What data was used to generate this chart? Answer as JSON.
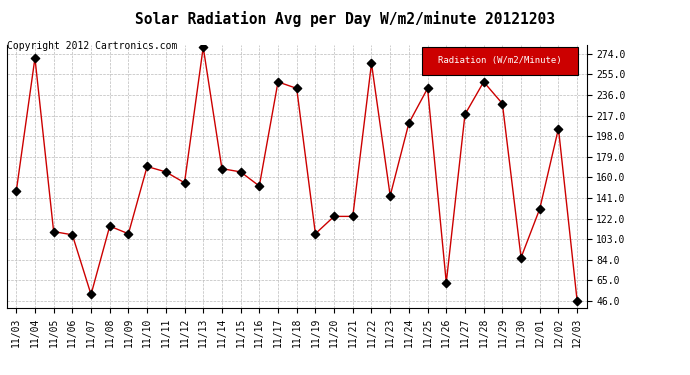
{
  "title": "Solar Radiation Avg per Day W/m2/minute 20121203",
  "copyright_text": "Copyright 2012 Cartronics.com",
  "legend_label": "Radiation (W/m2/Minute)",
  "x_labels": [
    "11/03",
    "11/04",
    "11/05",
    "11/06",
    "11/07",
    "11/08",
    "11/09",
    "11/10",
    "11/11",
    "11/12",
    "11/13",
    "11/14",
    "11/15",
    "11/16",
    "11/17",
    "11/18",
    "11/19",
    "11/20",
    "11/21",
    "11/22",
    "11/23",
    "11/24",
    "11/25",
    "11/26",
    "11/27",
    "11/28",
    "11/29",
    "11/30",
    "12/01",
    "12/02",
    "12/03"
  ],
  "y_values": [
    147,
    270,
    110,
    107,
    52,
    115,
    108,
    170,
    165,
    155,
    280,
    168,
    165,
    152,
    248,
    242,
    108,
    124,
    124,
    265,
    143,
    210,
    242,
    63,
    218,
    248,
    228,
    86,
    131,
    205,
    46
  ],
  "y_ticks": [
    46.0,
    65.0,
    84.0,
    103.0,
    122.0,
    141.0,
    160.0,
    179.0,
    198.0,
    217.0,
    236.0,
    255.0,
    274.0
  ],
  "ylim": [
    40,
    282
  ],
  "line_color": "#cc0000",
  "marker_color": "black",
  "marker": "D",
  "marker_size": 3,
  "bg_color": "#ffffff",
  "grid_color": "#bbbbbb",
  "title_fontsize": 10.5,
  "tick_fontsize": 7,
  "copyright_fontsize": 7,
  "legend_bg": "#cc0000",
  "legend_fg": "#ffffff",
  "legend_fontsize": 6.5
}
